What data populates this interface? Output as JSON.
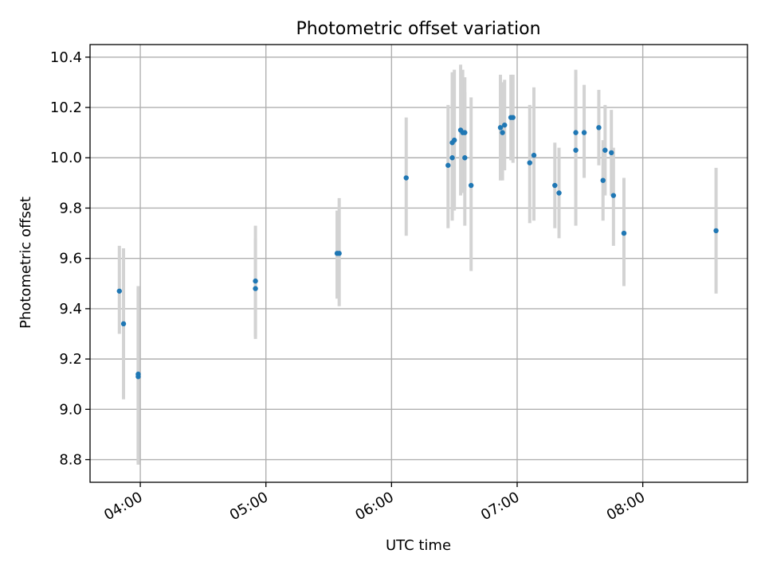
{
  "chart_data": {
    "type": "scatter",
    "title": "Photometric offset variation",
    "xlabel": "UTC time",
    "ylabel": "Photometric offset",
    "x_unit": "UTC time (HH:MM)",
    "xlim": [
      "03:36",
      "08:50"
    ],
    "ylim": [
      8.71,
      10.45
    ],
    "x_ticks": [
      "04:00",
      "05:00",
      "06:00",
      "07:00",
      "08:00"
    ],
    "y_ticks": [
      8.8,
      9.0,
      9.2,
      9.4,
      9.6,
      9.8,
      10.0,
      10.2,
      10.4
    ],
    "grid": true,
    "legend": "none",
    "colors": {
      "points": "#1f77b4",
      "errorbars": "#d3d3d3",
      "grid": "#b0b0b0"
    },
    "series": [
      {
        "points": [
          {
            "x": "03:50",
            "y": 9.47,
            "yerr_low": 9.3,
            "yerr_high": 9.65
          },
          {
            "x": "03:52",
            "y": 9.34,
            "yerr_low": 9.04,
            "yerr_high": 9.64
          },
          {
            "x": "03:59",
            "y": 9.14,
            "yerr_low": 8.79,
            "yerr_high": 9.49
          },
          {
            "x": "03:59",
            "y": 9.13,
            "yerr_low": 8.78,
            "yerr_high": 9.48
          },
          {
            "x": "04:55",
            "y": 9.51,
            "yerr_low": 9.29,
            "yerr_high": 9.73
          },
          {
            "x": "04:55",
            "y": 9.48,
            "yerr_low": 9.28,
            "yerr_high": 9.68
          },
          {
            "x": "05:34",
            "y": 9.62,
            "yerr_low": 9.44,
            "yerr_high": 9.79
          },
          {
            "x": "05:35",
            "y": 9.62,
            "yerr_low": 9.41,
            "yerr_high": 9.84
          },
          {
            "x": "06:07",
            "y": 9.92,
            "yerr_low": 9.69,
            "yerr_high": 10.16
          },
          {
            "x": "06:27",
            "y": 9.97,
            "yerr_low": 9.72,
            "yerr_high": 10.21
          },
          {
            "x": "06:29",
            "y": 10.0,
            "yerr_low": 9.75,
            "yerr_high": 10.25
          },
          {
            "x": "06:29",
            "y": 10.06,
            "yerr_low": 9.78,
            "yerr_high": 10.34
          },
          {
            "x": "06:30",
            "y": 10.07,
            "yerr_low": 9.79,
            "yerr_high": 10.35
          },
          {
            "x": "06:33",
            "y": 10.11,
            "yerr_low": 9.85,
            "yerr_high": 10.37
          },
          {
            "x": "06:34",
            "y": 10.1,
            "yerr_low": 9.86,
            "yerr_high": 10.35
          },
          {
            "x": "06:35",
            "y": 10.1,
            "yerr_low": 9.87,
            "yerr_high": 10.32
          },
          {
            "x": "06:35",
            "y": 10.0,
            "yerr_low": 9.73,
            "yerr_high": 10.26
          },
          {
            "x": "06:38",
            "y": 9.89,
            "yerr_low": 9.55,
            "yerr_high": 10.24
          },
          {
            "x": "06:52",
            "y": 10.12,
            "yerr_low": 9.91,
            "yerr_high": 10.33
          },
          {
            "x": "06:53",
            "y": 10.1,
            "yerr_low": 9.91,
            "yerr_high": 10.3
          },
          {
            "x": "06:54",
            "y": 10.13,
            "yerr_low": 9.95,
            "yerr_high": 10.31
          },
          {
            "x": "06:57",
            "y": 10.16,
            "yerr_low": 9.99,
            "yerr_high": 10.33
          },
          {
            "x": "06:58",
            "y": 10.16,
            "yerr_low": 9.98,
            "yerr_high": 10.33
          },
          {
            "x": "07:06",
            "y": 9.98,
            "yerr_low": 9.74,
            "yerr_high": 10.21
          },
          {
            "x": "07:08",
            "y": 10.01,
            "yerr_low": 9.75,
            "yerr_high": 10.28
          },
          {
            "x": "07:18",
            "y": 9.89,
            "yerr_low": 9.72,
            "yerr_high": 10.06
          },
          {
            "x": "07:20",
            "y": 9.86,
            "yerr_low": 9.68,
            "yerr_high": 10.04
          },
          {
            "x": "07:28",
            "y": 10.03,
            "yerr_low": 9.73,
            "yerr_high": 10.32
          },
          {
            "x": "07:28",
            "y": 10.1,
            "yerr_low": 9.85,
            "yerr_high": 10.35
          },
          {
            "x": "07:32",
            "y": 10.1,
            "yerr_low": 9.92,
            "yerr_high": 10.29
          },
          {
            "x": "07:39",
            "y": 10.12,
            "yerr_low": 9.97,
            "yerr_high": 10.27
          },
          {
            "x": "07:41",
            "y": 9.91,
            "yerr_low": 9.75,
            "yerr_high": 10.07
          },
          {
            "x": "07:42",
            "y": 10.03,
            "yerr_low": 9.85,
            "yerr_high": 10.21
          },
          {
            "x": "07:45",
            "y": 10.02,
            "yerr_low": 9.85,
            "yerr_high": 10.19
          },
          {
            "x": "07:46",
            "y": 9.85,
            "yerr_low": 9.65,
            "yerr_high": 10.04
          },
          {
            "x": "07:51",
            "y": 9.7,
            "yerr_low": 9.49,
            "yerr_high": 9.92
          },
          {
            "x": "08:35",
            "y": 9.71,
            "yerr_low": 9.46,
            "yerr_high": 9.96
          }
        ]
      }
    ]
  }
}
